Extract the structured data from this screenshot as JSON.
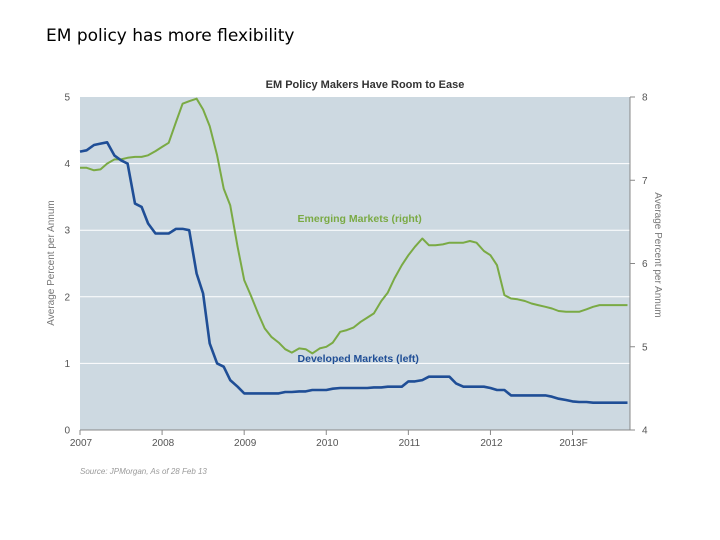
{
  "slide": {
    "title": "EM policy has more flexibility"
  },
  "chart_data": {
    "type": "line",
    "title": "EM Policy Makers Have Room to Ease",
    "ylabel_left": "Average Percent per Annum",
    "ylabel_right": "Average Percent per Annum",
    "ylim_left": [
      0,
      5
    ],
    "ylim_right": [
      4,
      8
    ],
    "xlim": [
      2007,
      2013.7
    ],
    "x_ticks": [
      "2007",
      "2008",
      "2009",
      "2010",
      "2011",
      "2012",
      "2013F"
    ],
    "y_ticks_left": [
      "0",
      "1",
      "2",
      "3",
      "4",
      "5"
    ],
    "y_ticks_right": [
      "4",
      "5",
      "6",
      "7",
      "8"
    ],
    "background_color": "#cdd9e1",
    "grid": "horizontal",
    "source": "Source: JPMorgan, As of 28 Feb 13",
    "series": [
      {
        "name": "Emerging Markets (right)",
        "axis": "right",
        "color": "#7aaa44",
        "label_anchor": [
          2009.65,
          6.5
        ],
        "x": [
          2007.0,
          2007.08,
          2007.17,
          2007.25,
          2007.33,
          2007.42,
          2007.5,
          2007.58,
          2007.67,
          2007.75,
          2007.83,
          2007.92,
          2008.0,
          2008.08,
          2008.17,
          2008.25,
          2008.33,
          2008.42,
          2008.5,
          2008.58,
          2008.67,
          2008.75,
          2008.83,
          2008.92,
          2009.0,
          2009.08,
          2009.17,
          2009.25,
          2009.33,
          2009.42,
          2009.5,
          2009.58,
          2009.67,
          2009.75,
          2009.83,
          2009.92,
          2010.0,
          2010.08,
          2010.17,
          2010.25,
          2010.33,
          2010.42,
          2010.5,
          2010.58,
          2010.67,
          2010.75,
          2010.83,
          2010.92,
          2011.0,
          2011.08,
          2011.17,
          2011.25,
          2011.33,
          2011.42,
          2011.5,
          2011.58,
          2011.67,
          2011.75,
          2011.83,
          2011.92,
          2012.0,
          2012.08,
          2012.17,
          2012.25,
          2012.33,
          2012.42,
          2012.5,
          2012.58,
          2012.67,
          2012.75,
          2012.83,
          2012.92,
          2013.0,
          2013.08,
          2013.17,
          2013.25,
          2013.33,
          2013.42,
          2013.5,
          2013.58,
          2013.67
        ],
        "values": [
          7.15,
          7.15,
          7.12,
          7.13,
          7.2,
          7.25,
          7.25,
          7.27,
          7.28,
          7.28,
          7.3,
          7.35,
          7.4,
          7.45,
          7.7,
          7.92,
          7.95,
          7.98,
          7.85,
          7.65,
          7.3,
          6.9,
          6.7,
          6.2,
          5.8,
          5.62,
          5.4,
          5.22,
          5.12,
          5.05,
          4.97,
          4.93,
          4.98,
          4.97,
          4.92,
          4.98,
          5.0,
          5.05,
          5.18,
          5.2,
          5.23,
          5.3,
          5.35,
          5.4,
          5.55,
          5.65,
          5.82,
          5.98,
          6.1,
          6.2,
          6.3,
          6.22,
          6.22,
          6.23,
          6.25,
          6.25,
          6.25,
          6.27,
          6.25,
          6.15,
          6.1,
          5.98,
          5.62,
          5.58,
          5.57,
          5.55,
          5.52,
          5.5,
          5.48,
          5.46,
          5.43,
          5.42,
          5.42,
          5.42,
          5.45,
          5.48,
          5.5,
          5.5,
          5.5,
          5.5,
          5.5
        ]
      },
      {
        "name": "Developed Markets (left)",
        "axis": "left",
        "color": "#1f4e96",
        "label_anchor": [
          2009.65,
          1.02
        ],
        "x": [
          2007.0,
          2007.08,
          2007.17,
          2007.25,
          2007.33,
          2007.42,
          2007.5,
          2007.58,
          2007.67,
          2007.75,
          2007.83,
          2007.92,
          2008.0,
          2008.08,
          2008.17,
          2008.25,
          2008.33,
          2008.42,
          2008.5,
          2008.58,
          2008.67,
          2008.75,
          2008.83,
          2008.92,
          2009.0,
          2009.08,
          2009.17,
          2009.25,
          2009.33,
          2009.42,
          2009.5,
          2009.58,
          2009.67,
          2009.75,
          2009.83,
          2009.92,
          2010.0,
          2010.08,
          2010.17,
          2010.25,
          2010.33,
          2010.42,
          2010.5,
          2010.58,
          2010.67,
          2010.75,
          2010.83,
          2010.92,
          2011.0,
          2011.08,
          2011.17,
          2011.25,
          2011.33,
          2011.42,
          2011.5,
          2011.58,
          2011.67,
          2011.75,
          2011.83,
          2011.92,
          2012.0,
          2012.08,
          2012.17,
          2012.25,
          2012.33,
          2012.42,
          2012.5,
          2012.58,
          2012.67,
          2012.75,
          2012.83,
          2012.92,
          2013.0,
          2013.08,
          2013.17,
          2013.25,
          2013.33,
          2013.42,
          2013.5,
          2013.58,
          2013.67
        ],
        "values": [
          4.18,
          4.2,
          4.28,
          4.3,
          4.32,
          4.12,
          4.05,
          4.0,
          3.4,
          3.35,
          3.1,
          2.95,
          2.95,
          2.95,
          3.02,
          3.02,
          3.0,
          2.35,
          2.05,
          1.3,
          1.0,
          0.95,
          0.75,
          0.65,
          0.55,
          0.55,
          0.55,
          0.55,
          0.55,
          0.55,
          0.57,
          0.57,
          0.58,
          0.58,
          0.6,
          0.6,
          0.6,
          0.62,
          0.63,
          0.63,
          0.63,
          0.63,
          0.63,
          0.64,
          0.64,
          0.65,
          0.65,
          0.65,
          0.73,
          0.73,
          0.75,
          0.8,
          0.8,
          0.8,
          0.8,
          0.7,
          0.65,
          0.65,
          0.65,
          0.65,
          0.63,
          0.6,
          0.6,
          0.52,
          0.52,
          0.52,
          0.52,
          0.52,
          0.52,
          0.5,
          0.47,
          0.45,
          0.43,
          0.42,
          0.42,
          0.41,
          0.41,
          0.41,
          0.41,
          0.41,
          0.41
        ]
      }
    ]
  }
}
